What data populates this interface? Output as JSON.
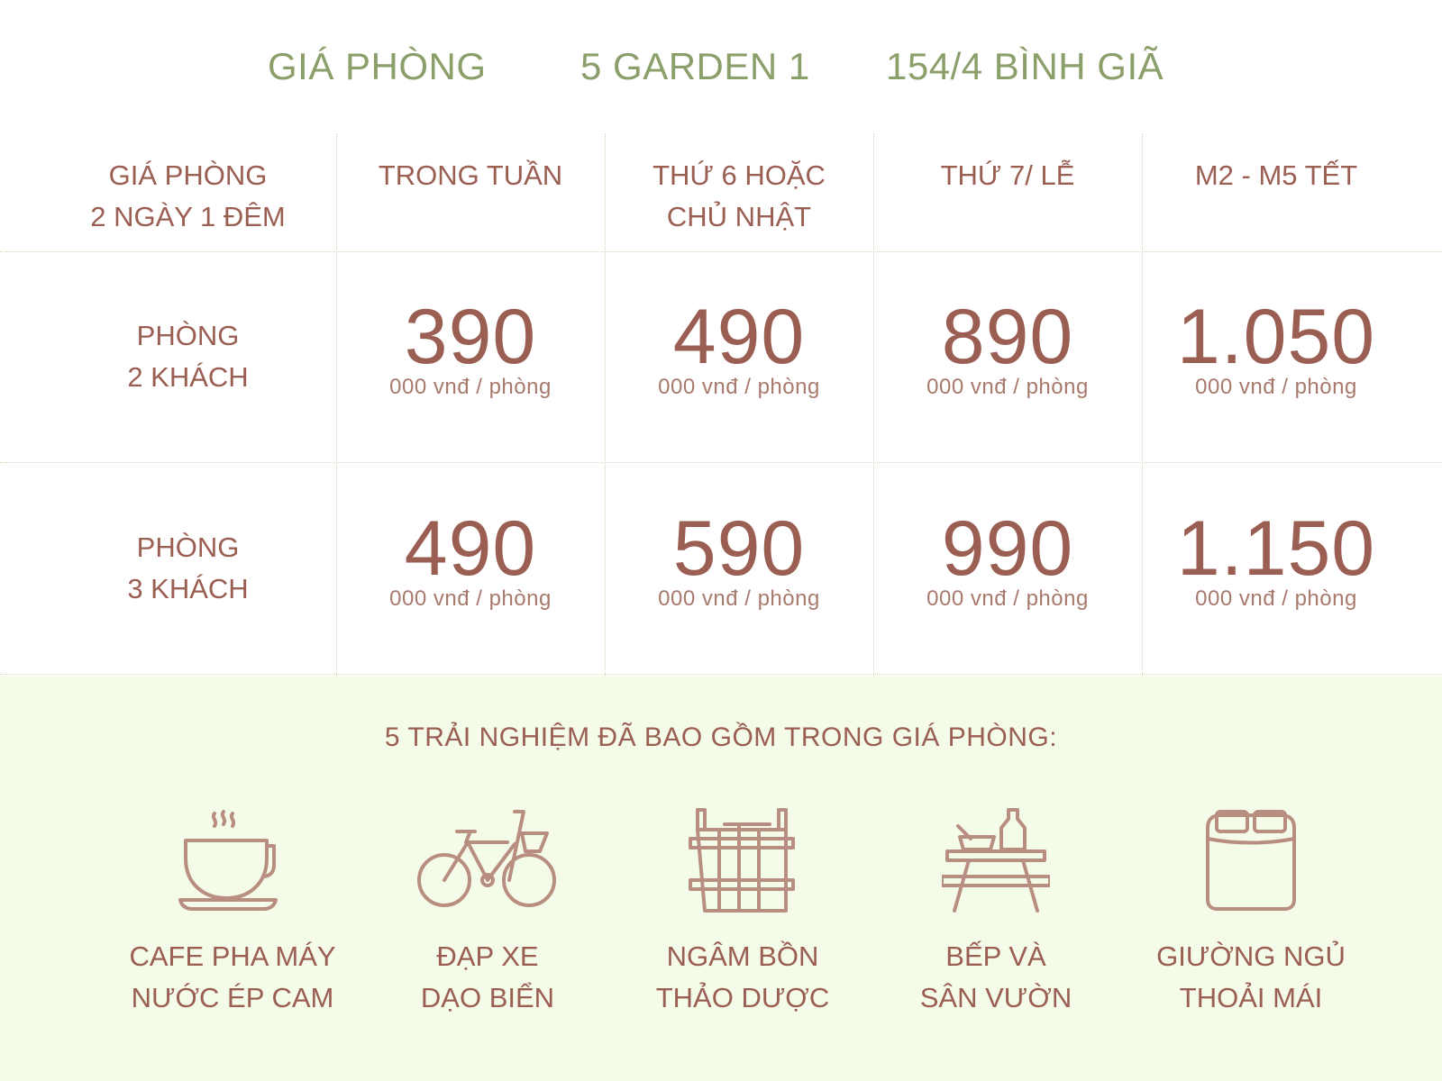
{
  "header": {
    "title_1": "GIÁ PHÒNG",
    "title_2": "5 GARDEN 1",
    "title_3": "154/4 BÌNH GIÃ"
  },
  "table": {
    "corner": [
      "GIÁ PHÒNG",
      "2 NGÀY 1 ĐÊM"
    ],
    "columns": [
      [
        "TRONG TUẦN",
        ""
      ],
      [
        "THỨ 6 HOẶC",
        "CHỦ NHẬT"
      ],
      [
        "THỨ 7/ LỄ",
        ""
      ],
      [
        "M2 - M5 TẾT",
        ""
      ]
    ],
    "unit": "000 vnđ / phòng",
    "rows": [
      {
        "label": [
          "PHÒNG",
          "2 KHÁCH"
        ],
        "prices": [
          "390",
          "490",
          "890",
          "1.050"
        ]
      },
      {
        "label": [
          "PHÒNG",
          "3 KHÁCH"
        ],
        "prices": [
          "490",
          "590",
          "990",
          "1.150"
        ]
      }
    ]
  },
  "experiences": {
    "title": "5 TRẢI NGHIỆM ĐÃ BAO GỒM TRONG GIÁ PHÒNG:",
    "items": [
      {
        "icon": "coffee-cup-icon",
        "label": [
          "CAFE PHA MÁY",
          "NƯỚC ÉP CAM"
        ]
      },
      {
        "icon": "bicycle-icon",
        "label": [
          "ĐẠP XE",
          "DẠO BIỂN"
        ]
      },
      {
        "icon": "wooden-tub-icon",
        "label": [
          "NGÂM BỒN",
          "THẢO DƯỢC"
        ]
      },
      {
        "icon": "picnic-table-icon",
        "label": [
          "BẾP VÀ",
          "SÂN VƯỜN"
        ]
      },
      {
        "icon": "bed-icon",
        "label": [
          "GIƯỜNG NGỦ",
          "THOẢI MÁI"
        ]
      }
    ]
  },
  "colors": {
    "title_green": "#8b9f6b",
    "text_brown": "#9a5e52",
    "icon": "#b88e80",
    "bottom_bg": "#f4fbe9"
  }
}
